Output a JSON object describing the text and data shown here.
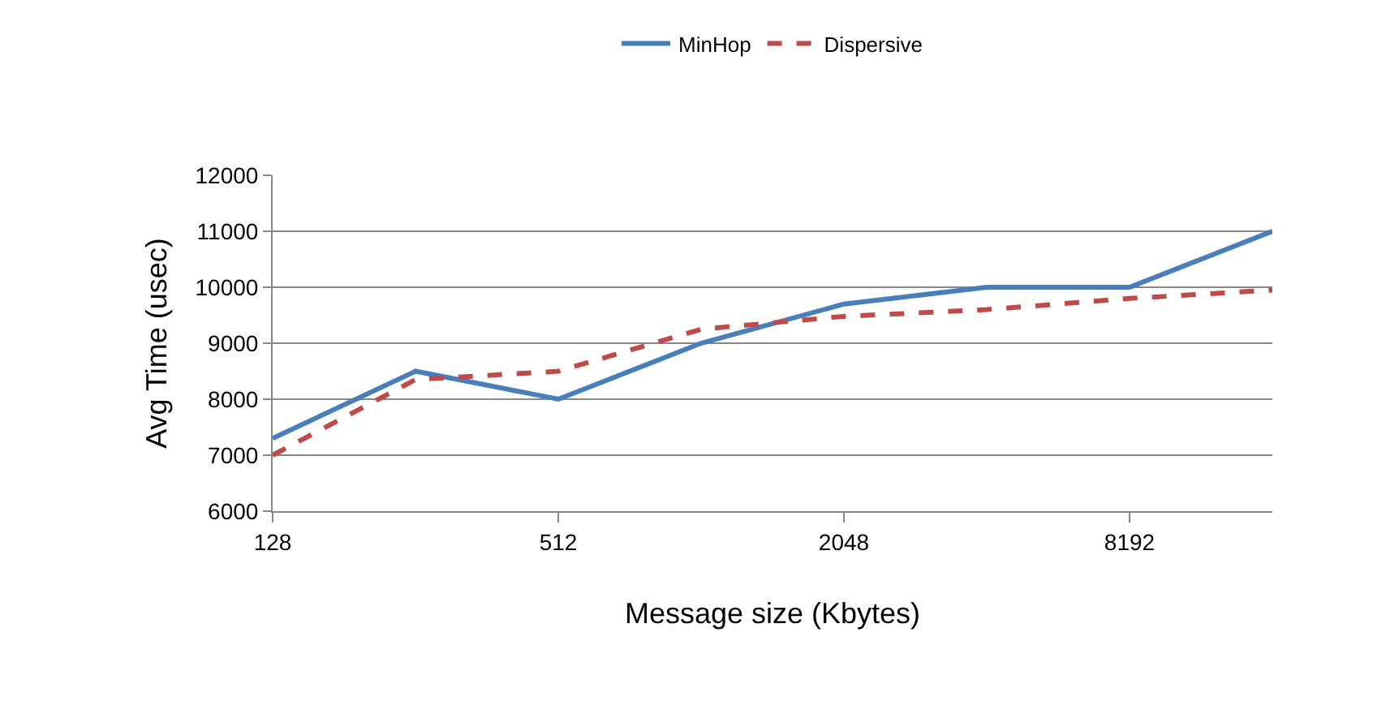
{
  "chart_data": {
    "type": "line",
    "xlabel": "Message size (Kbytes)",
    "ylabel": "Avg Time (usec)",
    "categories": [
      "128",
      null,
      "512",
      null,
      "2048",
      null,
      "8192",
      null
    ],
    "series": [
      {
        "name": "MinHop",
        "color": "#4a7ebb",
        "line_style": "solid",
        "values": [
          7300,
          8500,
          8000,
          9000,
          9700,
          10000,
          10000,
          11000
        ]
      },
      {
        "name": "Dispersive",
        "color": "#be4b48",
        "line_style": "dashed",
        "values": [
          7000,
          8350,
          8500,
          9250,
          9480,
          9600,
          9800,
          9950
        ]
      }
    ],
    "ylim": [
      6000,
      12000
    ],
    "yticks": [
      6000,
      7000,
      8000,
      9000,
      10000,
      11000,
      12000
    ],
    "grid": "y",
    "legend": "top",
    "marker": "none"
  }
}
